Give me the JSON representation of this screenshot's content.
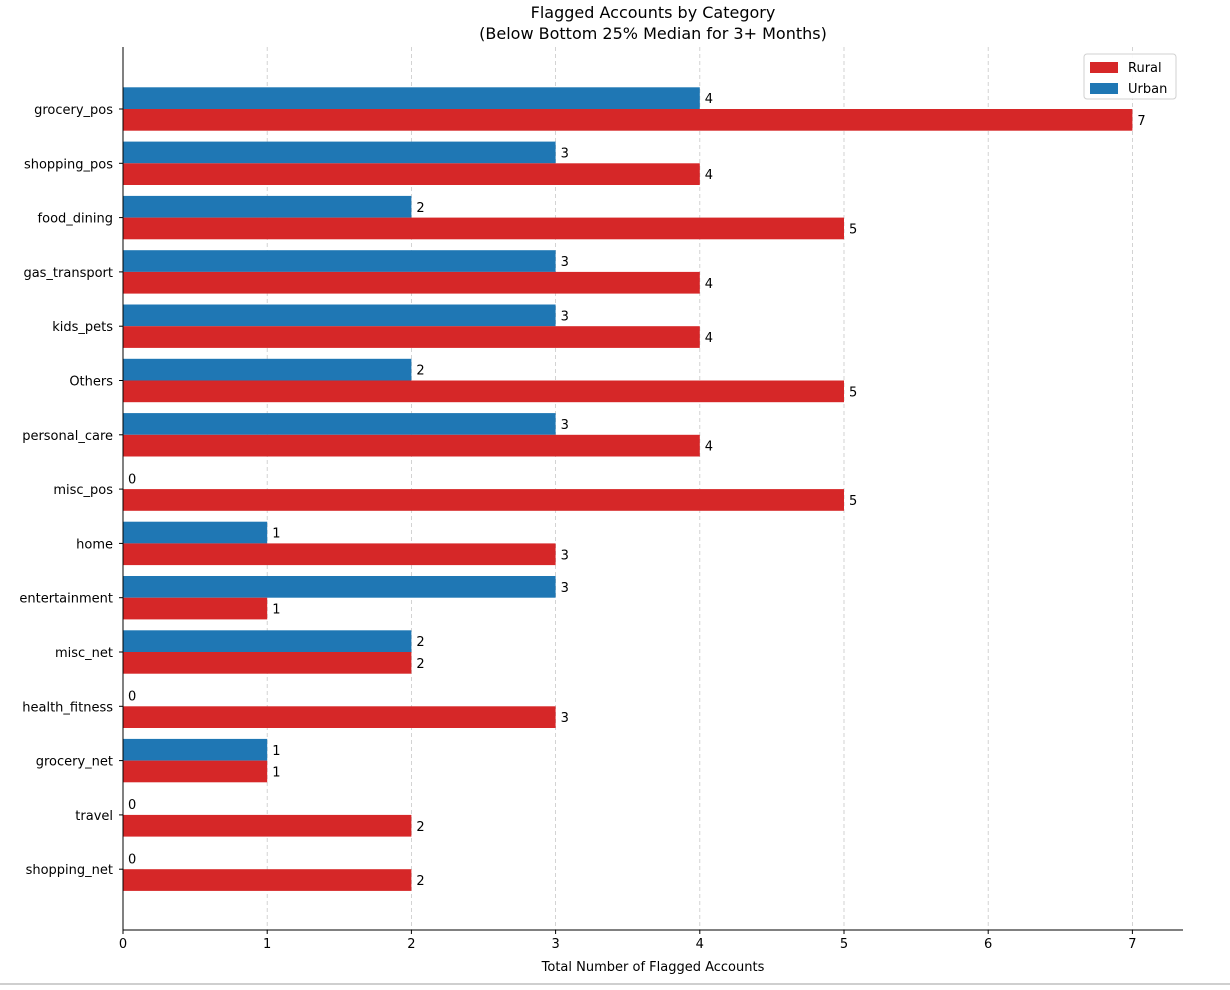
{
  "chart_data": {
    "type": "bar",
    "orientation": "horizontal",
    "title": "Flagged Accounts by Category",
    "subtitle": "(Below Bottom 25% Median for 3+ Months)",
    "xlabel": "Total Number of Flagged Accounts",
    "ylabel": "",
    "xlim": [
      0,
      7.35
    ],
    "x_ticks": [
      "0",
      "1",
      "2",
      "3",
      "4",
      "5",
      "6",
      "7"
    ],
    "grid": "x-dashed",
    "legend_position": "top-right",
    "categories": [
      "grocery_pos",
      "shopping_pos",
      "food_dining",
      "gas_transport",
      "kids_pets",
      "Others",
      "personal_care",
      "misc_pos",
      "home",
      "entertainment",
      "misc_net",
      "health_fitness",
      "grocery_net",
      "travel",
      "shopping_net"
    ],
    "series": [
      {
        "name": "Urban",
        "color": "#1f77b4",
        "values": [
          4,
          3,
          2,
          3,
          3,
          2,
          3,
          0,
          1,
          3,
          2,
          0,
          1,
          0,
          0
        ]
      },
      {
        "name": "Rural",
        "color": "#d62728",
        "values": [
          7,
          4,
          5,
          4,
          4,
          5,
          4,
          5,
          3,
          1,
          2,
          3,
          1,
          2,
          2
        ]
      }
    ],
    "legend_order": [
      "Rural",
      "Urban"
    ]
  }
}
